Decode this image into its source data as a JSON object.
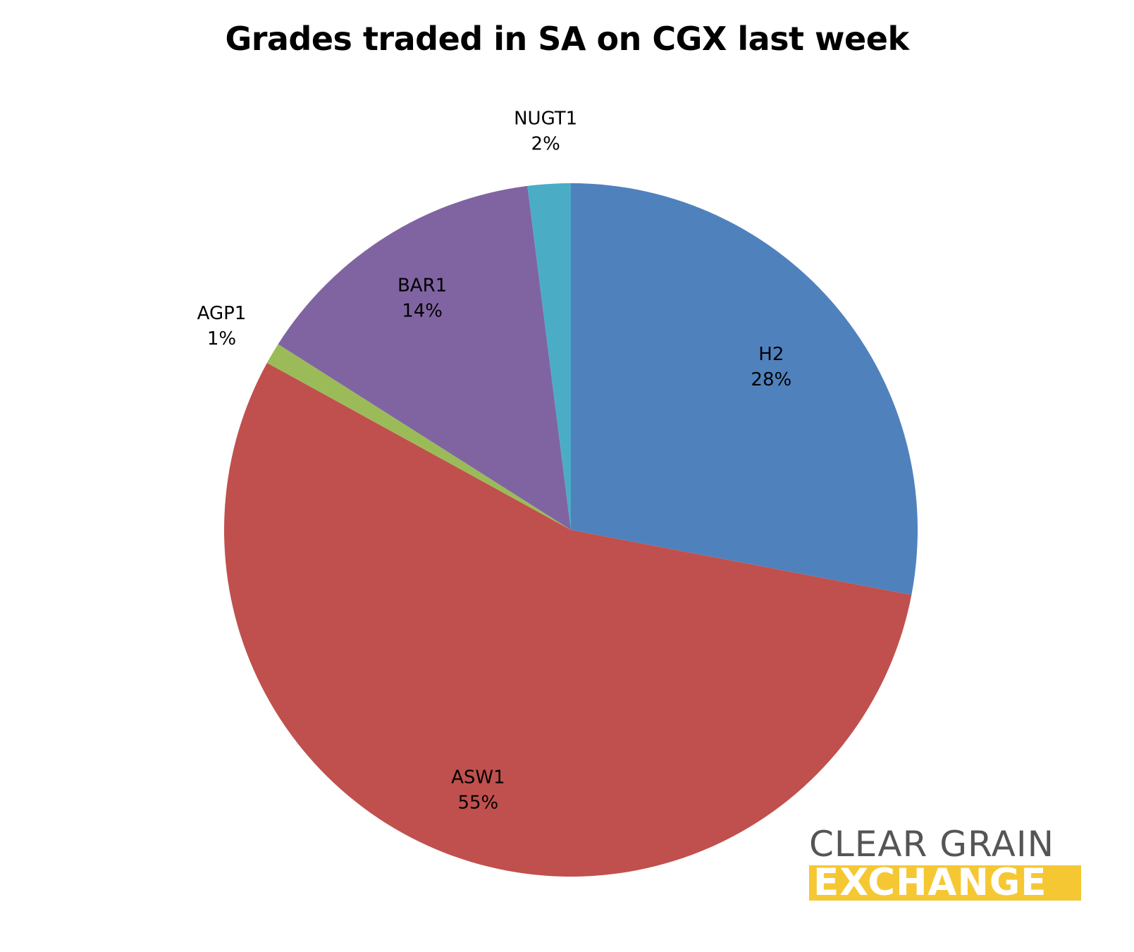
{
  "chart_data": {
    "type": "pie",
    "title": "Grades traded in SA on CGX last week",
    "start_angle_deg": 0,
    "direction": "clockwise",
    "slices": [
      {
        "name": "H2",
        "value": 28,
        "label": "28%",
        "color": "#4f81bd"
      },
      {
        "name": "ASW1",
        "value": 55,
        "label": "55%",
        "color": "#c0504d"
      },
      {
        "name": "AGP1",
        "value": 1,
        "label": "1%",
        "color": "#9bbb59"
      },
      {
        "name": "BAR1",
        "value": 14,
        "label": "14%",
        "color": "#8064a2"
      },
      {
        "name": "NUGT1",
        "value": 2,
        "label": "2%",
        "color": "#4bacc6"
      }
    ]
  },
  "logo": {
    "line1": "CLEAR GRAIN",
    "line2": "EXCHANGE",
    "accent_color": "#f5c833"
  }
}
